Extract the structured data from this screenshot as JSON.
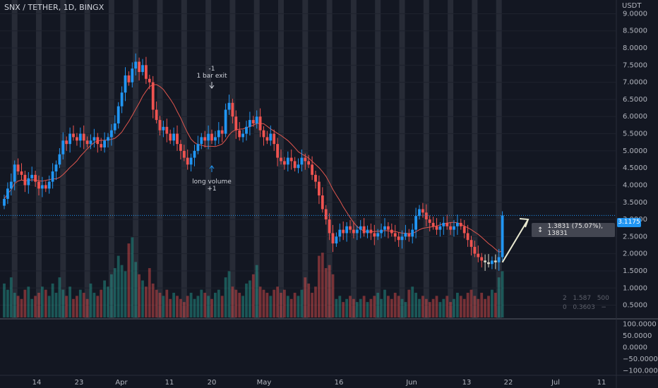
{
  "header": {
    "title": "SNX / TETHER, 1D, BINGX"
  },
  "chart_data": {
    "type": "candlestick",
    "pair": "SNX / TETHER",
    "timeframe": "1D",
    "exchange": "BINGX",
    "currency_label": "USDT",
    "price_axis": {
      "range": [
        0.1,
        9.4
      ],
      "ticks": [
        "0.5000",
        "1.0000",
        "1.5000",
        "2.0000",
        "2.5000",
        "3.0000",
        "3.5000",
        "4.0000",
        "4.5000",
        "5.0000",
        "5.5000",
        "6.0000",
        "6.5000",
        "7.0000",
        "7.5000",
        "8.0000",
        "8.5000",
        "9.0000"
      ]
    },
    "oscillator_axis": {
      "range": [
        -120,
        120
      ],
      "ticks": [
        "100.0000",
        "50.0000",
        "0.0000",
        "−50.0000",
        "−100.0000"
      ]
    },
    "date_ticks": [
      "14",
      "23",
      "Apr",
      "11",
      "20",
      "May",
      "16",
      "Jun",
      "13",
      "22",
      "Jul",
      "11"
    ],
    "last_price": "3.1175",
    "last_price_value": 3.1175,
    "colors": {
      "up": "#2196f3",
      "down": "#ef5350",
      "neutral": "#d9d9c8",
      "ma": "#e0564e",
      "band": "#5d606b"
    },
    "close": [
      3.6,
      3.9,
      4.1,
      4.6,
      4.4,
      4.3,
      4.0,
      4.2,
      4.3,
      4.1,
      3.9,
      4.0,
      3.9,
      4.1,
      4.4,
      4.6,
      4.9,
      5.3,
      5.2,
      5.5,
      5.4,
      5.3,
      5.5,
      5.3,
      5.2,
      5.3,
      5.4,
      5.2,
      5.1,
      5.3,
      5.4,
      5.6,
      5.8,
      6.3,
      6.7,
      7.2,
      7.0,
      7.4,
      7.6,
      7.3,
      7.5,
      7.1,
      7.0,
      6.2,
      5.9,
      5.6,
      5.7,
      5.5,
      5.3,
      5.5,
      5.2,
      5.0,
      4.8,
      4.6,
      4.8,
      5.0,
      5.2,
      5.4,
      5.3,
      5.5,
      5.3,
      5.4,
      5.6,
      5.5,
      6.2,
      6.4,
      6.0,
      5.6,
      5.4,
      5.5,
      5.7,
      5.9,
      5.8,
      6.0,
      5.6,
      5.4,
      5.3,
      5.5,
      5.2,
      4.8,
      4.7,
      4.6,
      4.8,
      4.7,
      4.5,
      4.6,
      4.8,
      4.7,
      4.6,
      4.3,
      4.1,
      3.7,
      3.3,
      3.0,
      2.6,
      2.3,
      2.5,
      2.7,
      2.6,
      2.8,
      2.7,
      2.6,
      2.7,
      2.8,
      2.6,
      2.7,
      2.6,
      2.5,
      2.6,
      2.7,
      2.8,
      2.7,
      2.6,
      2.5,
      2.4,
      2.5,
      2.6,
      2.5,
      2.7,
      3.1,
      3.3,
      3.2,
      3.0,
      2.9,
      2.8,
      2.7,
      2.8,
      2.9,
      2.8,
      2.7,
      2.8,
      2.9,
      2.8,
      2.6,
      2.4,
      2.2,
      2.0,
      1.9,
      1.8,
      1.75,
      1.7,
      1.8,
      1.75,
      1.9,
      3.1175
    ],
    "volume": [
      1.1,
      0.9,
      1.3,
      0.8,
      0.7,
      0.6,
      0.9,
      1.0,
      0.6,
      0.7,
      0.8,
      1.0,
      0.9,
      0.7,
      1.1,
      0.8,
      1.3,
      0.9,
      0.7,
      1.0,
      0.6,
      0.7,
      0.9,
      0.8,
      0.6,
      1.1,
      0.8,
      0.7,
      0.9,
      1.2,
      1.0,
      1.4,
      1.6,
      2.0,
      1.7,
      1.5,
      2.4,
      2.6,
      1.8,
      1.4,
      1.2,
      1.0,
      1.6,
      1.1,
      0.9,
      0.8,
      0.7,
      0.9,
      0.6,
      0.8,
      0.7,
      0.6,
      0.5,
      0.7,
      0.8,
      0.6,
      0.7,
      0.9,
      0.8,
      0.7,
      0.6,
      0.8,
      0.9,
      0.7,
      1.3,
      1.5,
      1.0,
      0.9,
      0.8,
      0.7,
      1.1,
      1.2,
      1.4,
      1.7,
      1.0,
      0.9,
      0.8,
      0.7,
      0.9,
      1.0,
      0.8,
      0.9,
      0.7,
      0.6,
      0.8,
      0.7,
      0.9,
      1.3,
      1.1,
      0.8,
      1.0,
      2.0,
      2.1,
      1.6,
      1.7,
      1.4,
      0.6,
      0.7,
      0.5,
      0.6,
      0.7,
      0.6,
      0.5,
      0.6,
      0.7,
      0.5,
      0.6,
      0.7,
      0.8,
      0.6,
      0.9,
      0.7,
      0.6,
      0.8,
      0.7,
      0.6,
      0.5,
      0.9,
      1.0,
      0.8,
      0.6,
      0.7,
      0.6,
      0.5,
      0.6,
      0.7,
      0.5,
      0.6,
      0.7,
      0.5,
      0.6,
      0.8,
      0.7,
      0.6,
      0.8,
      0.9,
      0.7,
      0.6,
      0.8,
      0.6,
      0.7,
      0.9,
      0.8,
      1.3,
      1.5
    ],
    "volume_readout": [
      {
        "label": "2",
        "a": "1.587",
        "b": "500"
      },
      {
        "label": "0",
        "a": "0.3603",
        "b": "−"
      }
    ],
    "measure_tool": {
      "label": "1.3831 (75.07%), 13831",
      "icon": "range-measure-icon"
    },
    "annotations": {
      "exit": {
        "line1": "-1",
        "line2": "1 bar exit",
        "bar": 60
      },
      "entry": {
        "line1": "long volume",
        "line2": "+1",
        "bar": 60
      }
    }
  }
}
